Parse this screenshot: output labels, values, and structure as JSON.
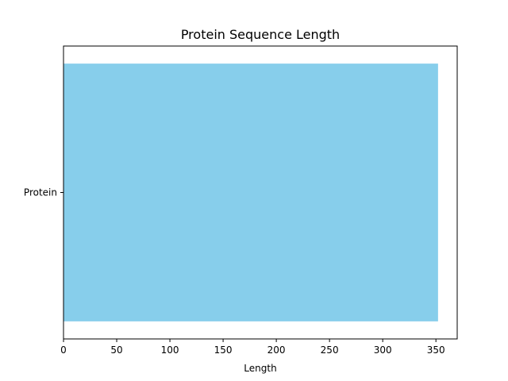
{
  "chart_data": {
    "type": "bar",
    "orientation": "horizontal",
    "title": "Protein Sequence Length",
    "xlabel": "Length",
    "ylabel": "",
    "categories": [
      "Protein"
    ],
    "values": [
      352
    ],
    "xlim": [
      0,
      370
    ],
    "xticks": [
      0,
      50,
      100,
      150,
      200,
      250,
      300,
      350
    ],
    "bar_color": "#87CEEB",
    "grid": false,
    "legend": "none"
  }
}
